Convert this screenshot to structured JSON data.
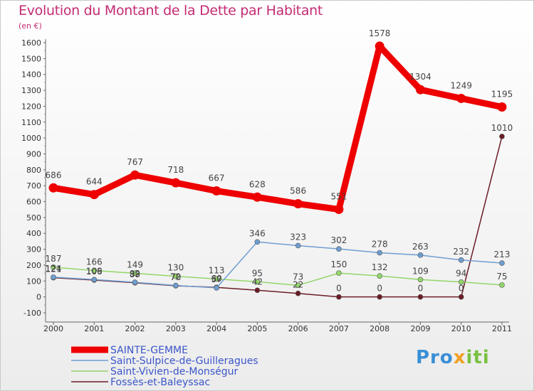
{
  "chart_data": {
    "type": "line",
    "title": "Evolution du Montant de la Dette par Habitant",
    "unit": "(en €)",
    "categories": [
      "2000",
      "2001",
      "2002",
      "2003",
      "2004",
      "2005",
      "2006",
      "2007",
      "2008",
      "2009",
      "2010",
      "2011"
    ],
    "ylim": [
      -100,
      1600
    ],
    "yticks": [
      -100,
      0,
      100,
      200,
      300,
      400,
      500,
      600,
      700,
      800,
      900,
      1000,
      1100,
      1200,
      1300,
      1400,
      1500,
      1600
    ],
    "grid": false,
    "legend": "bottom-left",
    "series": [
      {
        "name": "SAINTE-GEMME",
        "values": [
          686,
          644,
          767,
          718,
          667,
          628,
          586,
          551,
          1578,
          1304,
          1249,
          1195
        ],
        "labels": [
          "686",
          "644",
          "767",
          "718",
          "667",
          "628",
          "586",
          "551",
          "1578",
          "1304",
          "1249",
          "1195"
        ],
        "color": "#ee0000",
        "strokeWidth": 9,
        "markerRadius": 6.5
      },
      {
        "name": "Saint-Sulpice-de-Guilleragues",
        "values": [
          124,
          109,
          92,
          72,
          57,
          346,
          323,
          302,
          278,
          263,
          232,
          213
        ],
        "labels": [
          "124",
          "109",
          "92",
          "72",
          "57",
          "346",
          "323",
          "302",
          "278",
          "263",
          "232",
          "213"
        ],
        "color": "#6e9ed1",
        "strokeWidth": 1.5,
        "markerRadius": 3.5
      },
      {
        "name": "Saint-Vivien-de-Monségur",
        "values": [
          187,
          166,
          149,
          130,
          113,
          95,
          73,
          150,
          132,
          109,
          94,
          75
        ],
        "labels": [
          "187",
          "166",
          "149",
          "130",
          "113",
          "95",
          "73",
          "150",
          "132",
          "109",
          "94",
          "75"
        ],
        "color": "#93d66a",
        "strokeWidth": 1.5,
        "markerRadius": 3.5
      },
      {
        "name": "Fossès-et-Baleyssac",
        "values": [
          121,
          106,
          89,
          70,
          60,
          42,
          22,
          0,
          0,
          0,
          0,
          1010
        ],
        "labels": [
          "121",
          "106",
          "89",
          "70",
          "60",
          "42",
          "22",
          "0",
          "0",
          "0",
          "0",
          "1010"
        ],
        "color": "#6b1c24",
        "strokeWidth": 1.5,
        "markerRadius": 3.5
      }
    ]
  },
  "logo": {
    "part1": "Pro",
    "part2": "x",
    "part3": "iti"
  }
}
